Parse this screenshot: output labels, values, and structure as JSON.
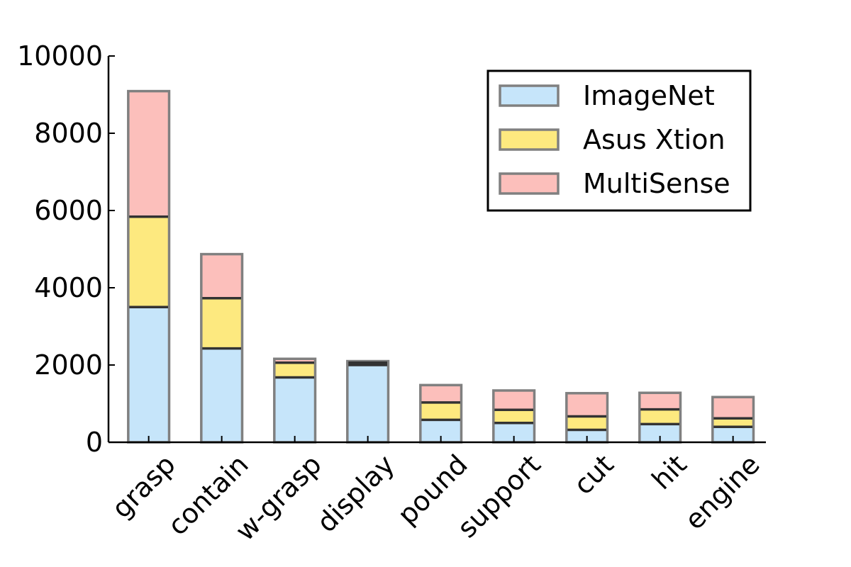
{
  "chart_data": {
    "type": "bar",
    "stacked": true,
    "title": "",
    "xlabel": "",
    "ylabel": "",
    "categories": [
      "grasp",
      "contain",
      "w-grasp",
      "display",
      "pound",
      "support",
      "cut",
      "hit",
      "engine"
    ],
    "series": [
      {
        "name": "ImageNet",
        "color": "#c6e5fa",
        "values": [
          3500,
          2430,
          1680,
          2000,
          580,
          500,
          320,
          470,
          400
        ]
      },
      {
        "name": "Asus Xtion",
        "color": "#fde97f",
        "values": [
          2340,
          1300,
          380,
          60,
          450,
          340,
          350,
          380,
          220
        ]
      },
      {
        "name": "MultiSense",
        "color": "#fcbfbb",
        "values": [
          3250,
          1140,
          100,
          40,
          450,
          500,
          600,
          430,
          550
        ]
      }
    ],
    "yticks": [
      "0",
      "2000",
      "4000",
      "6000",
      "8000",
      "10000"
    ],
    "ylim": [
      0,
      10000
    ],
    "grid": false,
    "legend_position": "top-right",
    "colors": {
      "edge": "#808080",
      "boundary": "#333333",
      "axis": "#000000"
    }
  }
}
